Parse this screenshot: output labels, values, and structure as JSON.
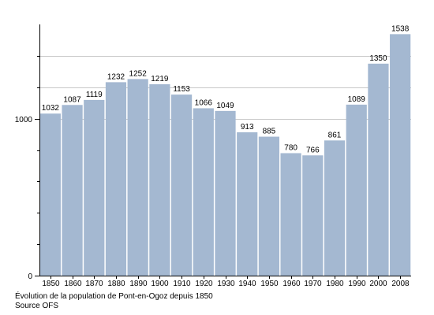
{
  "chart_data": {
    "type": "bar",
    "categories": [
      "1850",
      "1860",
      "1870",
      "1880",
      "1890",
      "1900",
      "1910",
      "1920",
      "1930",
      "1940",
      "1950",
      "1960",
      "1970",
      "1980",
      "1990",
      "2000",
      "2008"
    ],
    "values": [
      1032,
      1087,
      1119,
      1232,
      1252,
      1219,
      1153,
      1066,
      1049,
      913,
      885,
      780,
      766,
      861,
      1089,
      1350,
      1538
    ],
    "data_labels": [
      "1032",
      "1087",
      "1119",
      "1232",
      "1252",
      "1219",
      "1153",
      "1066",
      "1049",
      "913",
      "885",
      "780",
      "766",
      "861",
      "1089",
      "1350",
      "1538"
    ],
    "title": "",
    "xlabel": "",
    "ylabel": "",
    "ylim": [
      0,
      1600
    ],
    "y_ticks_labeled": [
      0,
      1000
    ],
    "y_ticks_minor": [
      200,
      400,
      600,
      800,
      1200,
      1400
    ],
    "gridlines": [
      1000,
      1200,
      1400
    ],
    "grid": true,
    "bar_color": "#a4b8d1",
    "gridline_color": "#c8c8c8",
    "axis_color": "#000000"
  },
  "caption": {
    "line1": "Évolution de la population de Pont-en-Ogoz depuis 1850",
    "line2": "Source OFS"
  }
}
